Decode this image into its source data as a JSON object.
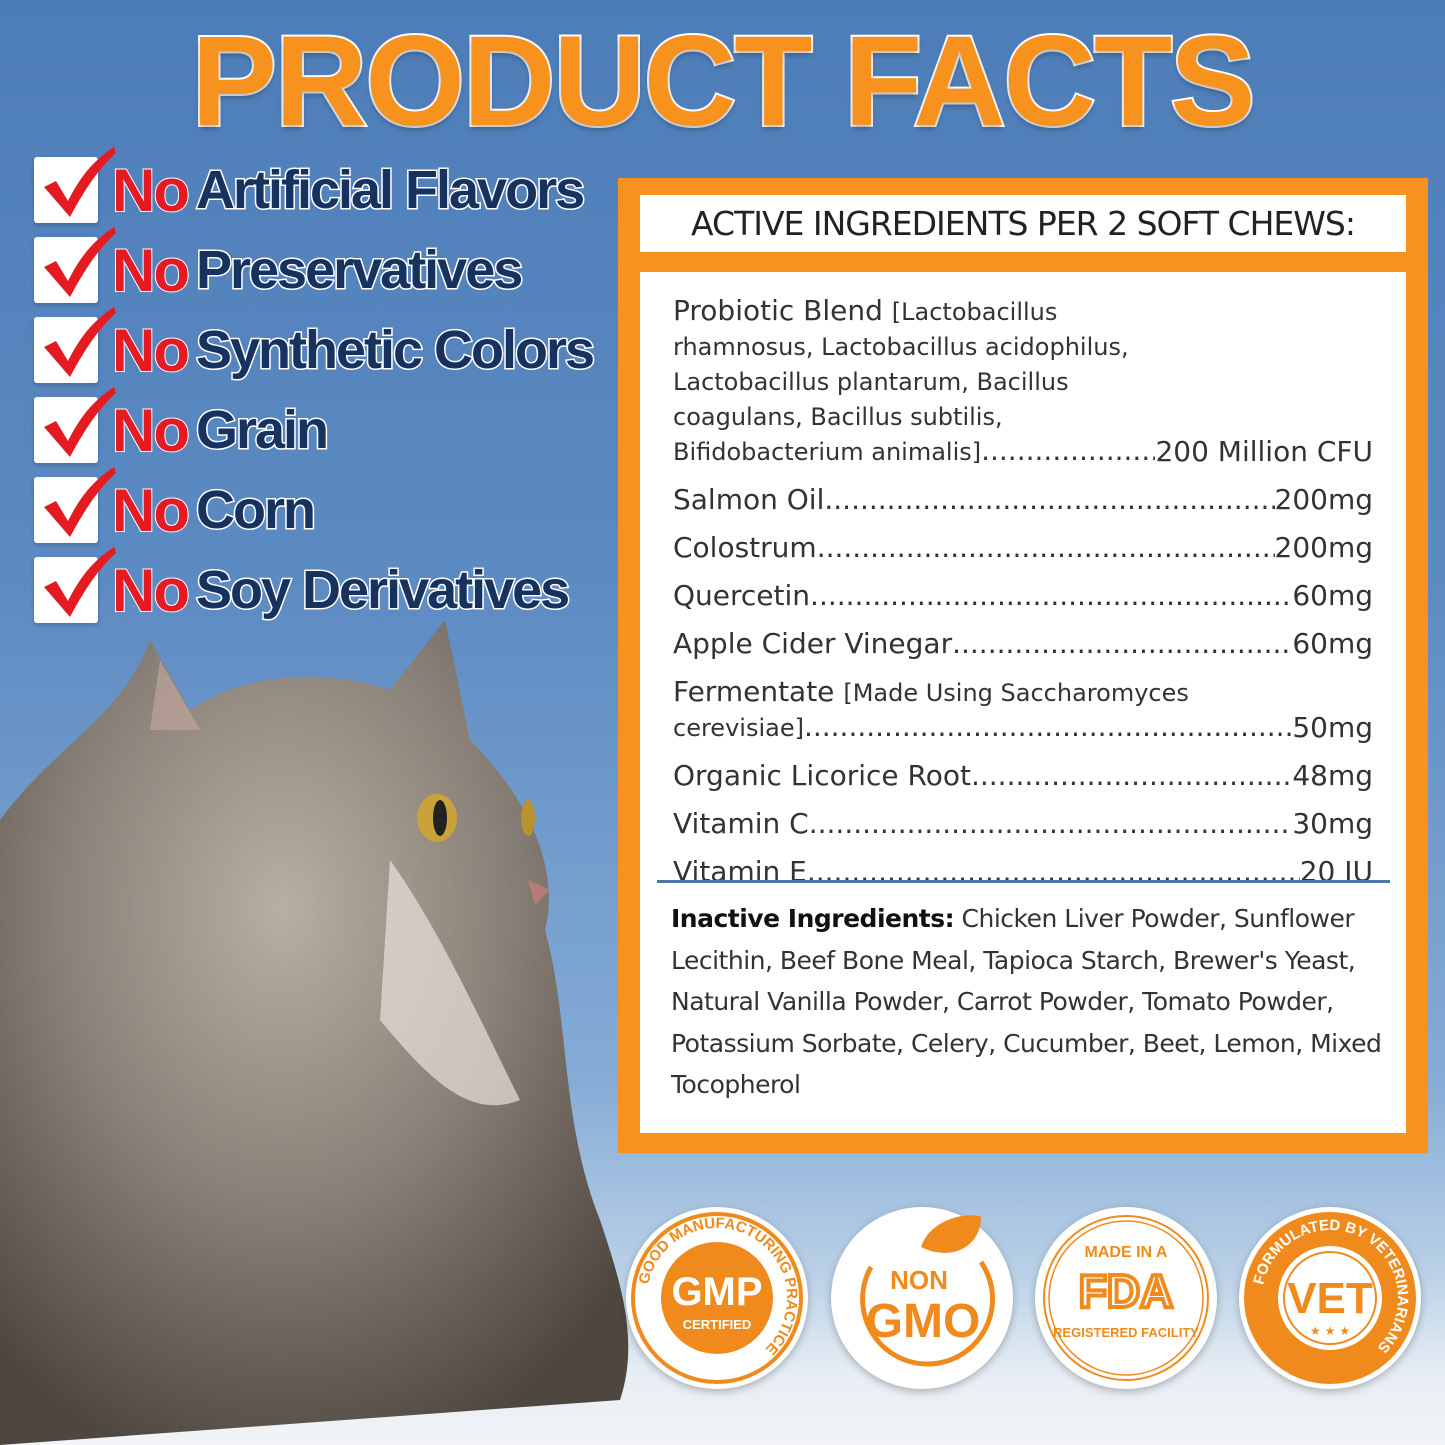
{
  "title": "PRODUCT FACTS",
  "claims": [
    {
      "no": "No",
      "text": "Artificial Flavors"
    },
    {
      "no": "No",
      "text": "Preservatives"
    },
    {
      "no": "No",
      "text": "Synthetic Colors"
    },
    {
      "no": "No",
      "text": "Grain"
    },
    {
      "no": "No",
      "text": "Corn"
    },
    {
      "no": "No",
      "text": "Soy Derivatives"
    }
  ],
  "facts": {
    "header": "ACTIVE INGREDIENTS PER 2 SOFT CHEWS:",
    "active": [
      {
        "name": "Probiotic Blend",
        "detail": "[Lactobacillus rhamnosus, Lactobacillus acidophilus, Lactobacillus plantarum, Bacillus coagulans, Bacillus subtilis, Bifidobacterium animalis]",
        "value": "200 Million CFU"
      },
      {
        "name": "Salmon Oil",
        "detail": "",
        "value": "200mg"
      },
      {
        "name": "Colostrum",
        "detail": "",
        "value": "200mg"
      },
      {
        "name": "Quercetin",
        "detail": "",
        "value": "60mg"
      },
      {
        "name": "Apple Cider Vinegar",
        "detail": "",
        "value": "60mg"
      },
      {
        "name": "Fermentate",
        "detail": "[Made Using Saccharomyces cerevisiae]",
        "value": "50mg"
      },
      {
        "name": "Organic Licorice Root",
        "detail": "",
        "value": "48mg"
      },
      {
        "name": "Vitamin C",
        "detail": "",
        "value": "30mg"
      },
      {
        "name": "Vitamin E",
        "detail": "",
        "value": "20 IU"
      }
    ],
    "inactive_label": "Inactive Ingredients:",
    "inactive_text": "Chicken Liver Powder, Sunflower Lecithin, Beef Bone Meal, Tapioca Starch, Brewer's Yeast, Natural Vanilla Powder, Carrot Powder, Tomato Powder, Potassium Sorbate, Celery, Cucumber, Beet, Lemon, Mixed Tocopherol"
  },
  "badges": [
    {
      "name": "gmp",
      "ring": "GOOD MANUFACTURING PRACTICE",
      "main": "GMP",
      "sub": "CERTIFIED"
    },
    {
      "name": "non-gmo",
      "top": "NON",
      "main": "GMO"
    },
    {
      "name": "fda",
      "top": "MADE IN A",
      "main": "FDA",
      "sub": "REGISTERED FACILITY"
    },
    {
      "name": "vet",
      "ring": "FORMULATED BY VETERINARIANS",
      "main": "VET"
    }
  ],
  "colors": {
    "accent": "#f7921e",
    "red": "#e41b23",
    "navy": "#17325f",
    "background": "#5c8ac2"
  }
}
